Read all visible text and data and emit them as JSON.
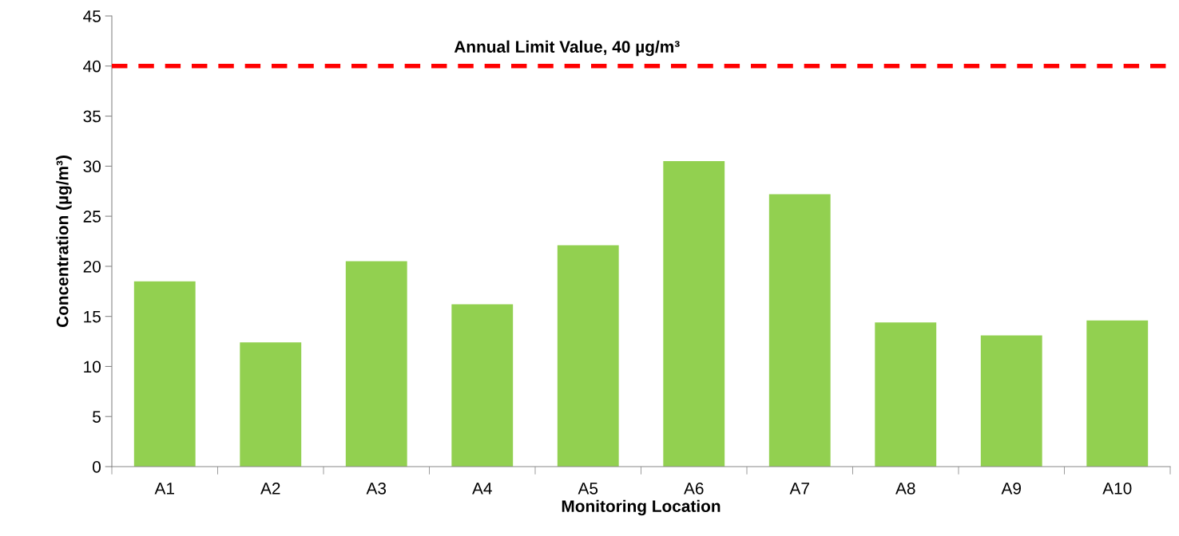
{
  "chart_data": {
    "type": "bar",
    "xlabel": "Monitoring Location",
    "ylabel": "Concentration (µg/m³)",
    "categories": [
      "A1",
      "A2",
      "A3",
      "A4",
      "A5",
      "A6",
      "A7",
      "A8",
      "A9",
      "A10"
    ],
    "values": [
      18.5,
      12.4,
      20.5,
      16.2,
      22.1,
      30.5,
      27.2,
      14.4,
      13.1,
      14.6
    ],
    "color": "#92d050",
    "ylim": [
      0,
      45
    ],
    "yticks": [
      0,
      5,
      10,
      15,
      20,
      25,
      30,
      35,
      40,
      45
    ],
    "ref_lines": [
      {
        "axis": "y",
        "value": 40,
        "label": "Annual Limit Value, 40 µg/m³",
        "color": "#ff0000",
        "line_style": "dashed"
      }
    ],
    "grid": false
  }
}
